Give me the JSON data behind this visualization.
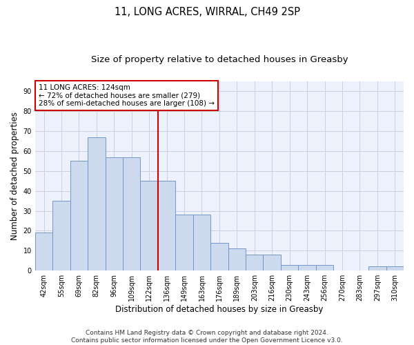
{
  "title1": "11, LONG ACRES, WIRRAL, CH49 2SP",
  "title2": "Size of property relative to detached houses in Greasby",
  "xlabel": "Distribution of detached houses by size in Greasby",
  "ylabel": "Number of detached properties",
  "categories": [
    "42sqm",
    "55sqm",
    "69sqm",
    "82sqm",
    "96sqm",
    "109sqm",
    "122sqm",
    "136sqm",
    "149sqm",
    "163sqm",
    "176sqm",
    "189sqm",
    "203sqm",
    "216sqm",
    "230sqm",
    "243sqm",
    "256sqm",
    "270sqm",
    "283sqm",
    "297sqm",
    "310sqm"
  ],
  "values": [
    19,
    35,
    55,
    67,
    57,
    57,
    45,
    45,
    28,
    28,
    14,
    11,
    8,
    8,
    3,
    3,
    3,
    0,
    0,
    2,
    2
  ],
  "bar_color": "#cdd9ed",
  "bar_edge_color": "#7096c8",
  "vline_x_index": 6,
  "vline_color": "#cc0000",
  "annotation_line1": "11 LONG ACRES: 124sqm",
  "annotation_line2": "← 72% of detached houses are smaller (279)",
  "annotation_line3": "28% of semi-detached houses are larger (108) →",
  "annotation_box_color": "#cc0000",
  "annotation_box_fill": "#ffffff",
  "ylim": [
    0,
    95
  ],
  "yticks": [
    0,
    10,
    20,
    30,
    40,
    50,
    60,
    70,
    80,
    90
  ],
  "grid_color": "#c8d0e0",
  "footer_text": "Contains HM Land Registry data © Crown copyright and database right 2024.\nContains public sector information licensed under the Open Government Licence v3.0.",
  "bg_color": "#edf1fb",
  "title1_fontsize": 10.5,
  "title2_fontsize": 9.5,
  "xlabel_fontsize": 8.5,
  "ylabel_fontsize": 8.5,
  "tick_fontsize": 7,
  "footer_fontsize": 6.5,
  "annotation_fontsize": 7.5
}
